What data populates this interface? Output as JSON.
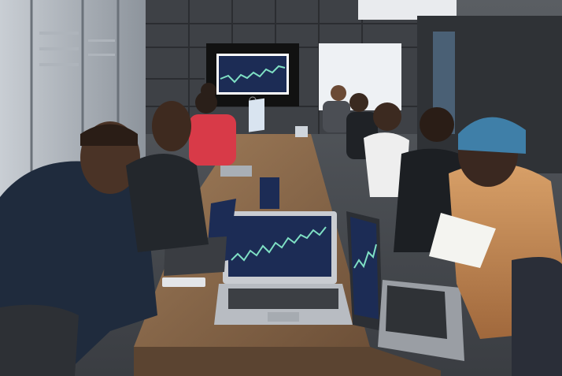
{
  "scene": {
    "subject": "trading-class-room",
    "colors": {
      "wall": "#4a4d52",
      "ceiling": "#e9ebee",
      "table": "#8a6a4c",
      "screen_bg": "#1c2c55",
      "chart_line": "#7fe0c4",
      "laptop_body": "#b8bcc2"
    }
  }
}
